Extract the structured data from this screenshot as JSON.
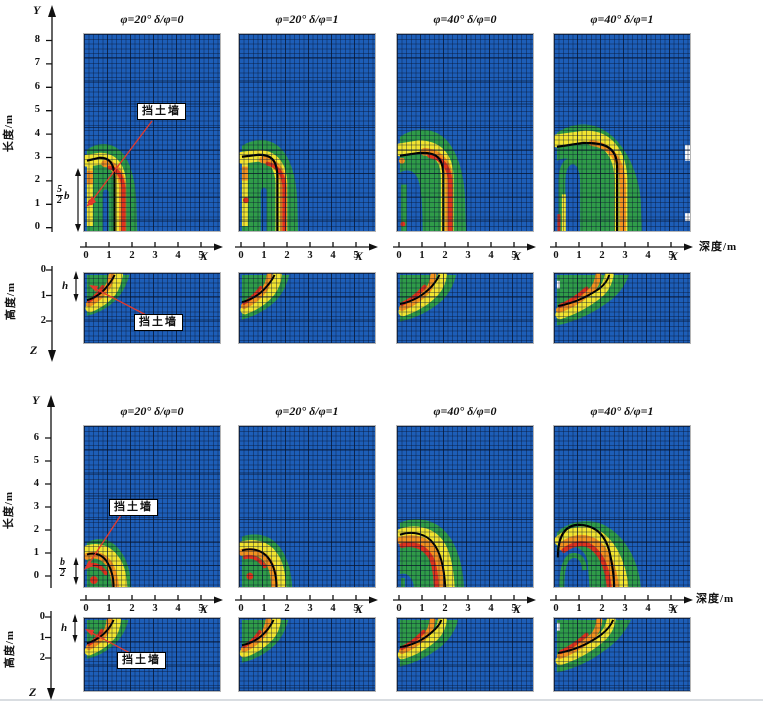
{
  "figure": {
    "groups": [
      {
        "name": "tall wall (height 5b/2)",
        "titles": [
          "φ=20° δ/φ=0",
          "φ=20° δ/φ=1",
          "φ=40° δ/φ=0",
          "φ=40° δ/φ=1"
        ],
        "y_axis": {
          "var": "Y",
          "label": "长度/m",
          "ticks": [
            "8",
            "7",
            "6",
            "5",
            "4",
            "3",
            "2",
            "1",
            "0"
          ]
        },
        "x_axis": {
          "var": "X",
          "label": "深度/m",
          "ticks": [
            "0",
            "1",
            "2",
            "3",
            "4",
            "5"
          ]
        },
        "z_axis": {
          "var": "Z",
          "label": "高度/m",
          "ticks": [
            "0",
            "1",
            "2"
          ]
        },
        "wall_label": "挡土墙",
        "dim": {
          "num": "5",
          "den": "2",
          "suffix": "b"
        },
        "h_label": "h"
      },
      {
        "name": "short wall (height b/2)",
        "titles": [
          "φ=20° δ/φ=0",
          "φ=20° δ/φ=1",
          "φ=40° δ/φ=0",
          "φ=40° δ/φ=1"
        ],
        "y_axis": {
          "var": "Y",
          "label": "长度/m",
          "ticks": [
            "6",
            "5",
            "4",
            "3",
            "2",
            "1",
            "0"
          ]
        },
        "x_axis": {
          "var": "X",
          "label": "深度/m",
          "ticks": [
            "0",
            "1",
            "2",
            "3",
            "4",
            "5"
          ]
        },
        "z_axis": {
          "var": "Z",
          "label": "高度/m",
          "ticks": [
            "0",
            "1",
            "2"
          ]
        },
        "wall_label": "挡土墙",
        "dim": {
          "num": "b",
          "den": "2",
          "suffix": ""
        },
        "h_label": "h"
      }
    ]
  },
  "colors": {
    "soil_low_blue": "#1d5eb8",
    "zone_green": "#2f9c49",
    "zone_yellow": "#f2e531",
    "zone_orange": "#f3921f",
    "zone_red": "#df331e",
    "slip_line": "#000000",
    "annotation_red": "#e4392b"
  },
  "chart_data": {
    "type": "heatmap",
    "description": "Soil displacement magnitude fields around a translating retaining wall (挡土墙). Two wall sizes; for each, four cases (φ=20°/40°, δ/φ=0/1) shown in plan view (X–Y, 长度/m vs 深度/m) and section view (X–Z, 高度/m). Black curve = slip surface; colormap blue(low)→green→yellow→orange→red(high).",
    "colormap_order": [
      "blue (low)",
      "green",
      "yellow",
      "orange",
      "red (high)"
    ],
    "groups": [
      {
        "wall_size": "5/2·b",
        "panels": [
          {
            "phi_deg": 20,
            "delta_over_phi": 0,
            "plan_view": {
              "x_range_m": [
                0,
                5.9
              ],
              "y_range_m": [
                0,
                8.6
              ],
              "slip_x_at_base_m": 1.2,
              "slip_apex_y_m": 2.95,
              "zone_max_x_m": 2.2,
              "zone_max_y_m": 3.45
            },
            "section_view": {
              "x_range_m": [
                0,
                5.9
              ],
              "z_range_m": [
                0,
                2.9
              ],
              "slip_x_at_surface_m": 1.17,
              "slip_z_at_wall_m": 1.04,
              "zone_max_x_m": 1.9,
              "zone_max_z_m": 1.7
            }
          },
          {
            "phi_deg": 20,
            "delta_over_phi": 1,
            "plan_view": {
              "x_range_m": [
                0,
                5.9
              ],
              "y_range_m": [
                0,
                8.6
              ],
              "slip_x_at_base_m": 1.55,
              "slip_apex_y_m": 3.1,
              "zone_max_x_m": 2.45,
              "zone_max_y_m": 3.5
            },
            "section_view": {
              "x_range_m": [
                0,
                5.9
              ],
              "z_range_m": [
                0,
                2.9
              ],
              "slip_x_at_surface_m": 1.43,
              "slip_z_at_wall_m": 1.12,
              "zone_max_x_m": 2.1,
              "zone_max_z_m": 1.85
            }
          },
          {
            "phi_deg": 40,
            "delta_over_phi": 0,
            "plan_view": {
              "x_range_m": [
                0,
                5.9
              ],
              "y_range_m": [
                0,
                8.6
              ],
              "slip_x_at_base_m": 1.9,
              "slip_apex_y_m": 3.2,
              "zone_max_x_m": 2.9,
              "zone_max_y_m": 3.85
            },
            "section_view": {
              "x_range_m": [
                0,
                5.9
              ],
              "z_range_m": [
                0,
                2.9
              ],
              "slip_x_at_surface_m": 1.74,
              "slip_z_at_wall_m": 1.28,
              "zone_max_x_m": 2.5,
              "zone_max_z_m": 1.95
            }
          },
          {
            "phi_deg": 40,
            "delta_over_phi": 1,
            "plan_view": {
              "x_range_m": [
                0,
                5.9
              ],
              "y_range_m": [
                0,
                8.6
              ],
              "slip_x_at_base_m": 2.6,
              "slip_apex_y_m": 3.6,
              "zone_max_x_m": 3.7,
              "zone_max_y_m": 4.2,
              "note": "white void spots at right mesh edge"
            },
            "section_view": {
              "x_range_m": [
                0,
                5.9
              ],
              "z_range_m": [
                0,
                2.9
              ],
              "slip_x_at_surface_m": 2.3,
              "slip_z_at_wall_m": 1.3,
              "zone_max_x_m": 3.2,
              "zone_max_z_m": 2.1
            }
          }
        ]
      },
      {
        "wall_size": "b/2",
        "panels": [
          {
            "phi_deg": 20,
            "delta_over_phi": 0,
            "plan_view": {
              "x_range_m": [
                0,
                5.9
              ],
              "y_range_m": [
                0,
                6.6
              ],
              "slip_x_at_base_m": 1.13,
              "slip_apex_y_m": 0.98,
              "zone_max_x_m": 1.9,
              "zone_max_y_m": 1.6
            },
            "section_view": {
              "x_range_m": [
                0,
                5.9
              ],
              "z_range_m": [
                0,
                3.5
              ],
              "slip_x_at_surface_m": 1.17,
              "slip_z_at_wall_m": 1.17,
              "zone_max_x_m": 1.9,
              "zone_max_z_m": 1.95
            }
          },
          {
            "phi_deg": 20,
            "delta_over_phi": 1,
            "plan_view": {
              "x_range_m": [
                0,
                5.9
              ],
              "y_range_m": [
                0,
                6.6
              ],
              "slip_x_at_base_m": 1.52,
              "slip_apex_y_m": 1.2,
              "zone_max_x_m": 2.2,
              "zone_max_y_m": 1.85
            },
            "section_view": {
              "x_range_m": [
                0,
                5.9
              ],
              "z_range_m": [
                0,
                3.5
              ],
              "slip_x_at_surface_m": 1.4,
              "slip_z_at_wall_m": 1.25,
              "zone_max_x_m": 2.1,
              "zone_max_z_m": 2.1
            }
          },
          {
            "phi_deg": 40,
            "delta_over_phi": 0,
            "plan_view": {
              "x_range_m": [
                0,
                5.9
              ],
              "y_range_m": [
                0,
                6.6
              ],
              "slip_x_at_base_m": 2.0,
              "slip_apex_y_m": 1.9,
              "zone_max_x_m": 2.8,
              "zone_max_y_m": 2.5
            },
            "section_view": {
              "x_range_m": [
                0,
                5.9
              ],
              "z_range_m": [
                0,
                3.5
              ],
              "slip_x_at_surface_m": 1.83,
              "slip_z_at_wall_m": 1.35,
              "zone_max_x_m": 2.6,
              "zone_max_z_m": 2.3
            }
          },
          {
            "phi_deg": 40,
            "delta_over_phi": 1,
            "plan_view": {
              "x_range_m": [
                0,
                5.9
              ],
              "y_range_m": [
                0,
                6.6
              ],
              "slip_x_at_base_m": 2.55,
              "slip_apex_y_m": 2.2,
              "zone_max_x_m": 3.9,
              "zone_max_y_m": 2.8
            },
            "section_view": {
              "x_range_m": [
                0,
                5.9
              ],
              "z_range_m": [
                0,
                3.5
              ],
              "slip_x_at_surface_m": 2.45,
              "slip_z_at_wall_m": 1.65,
              "zone_max_x_m": 3.3,
              "zone_max_z_m": 2.6
            }
          }
        ]
      }
    ]
  }
}
